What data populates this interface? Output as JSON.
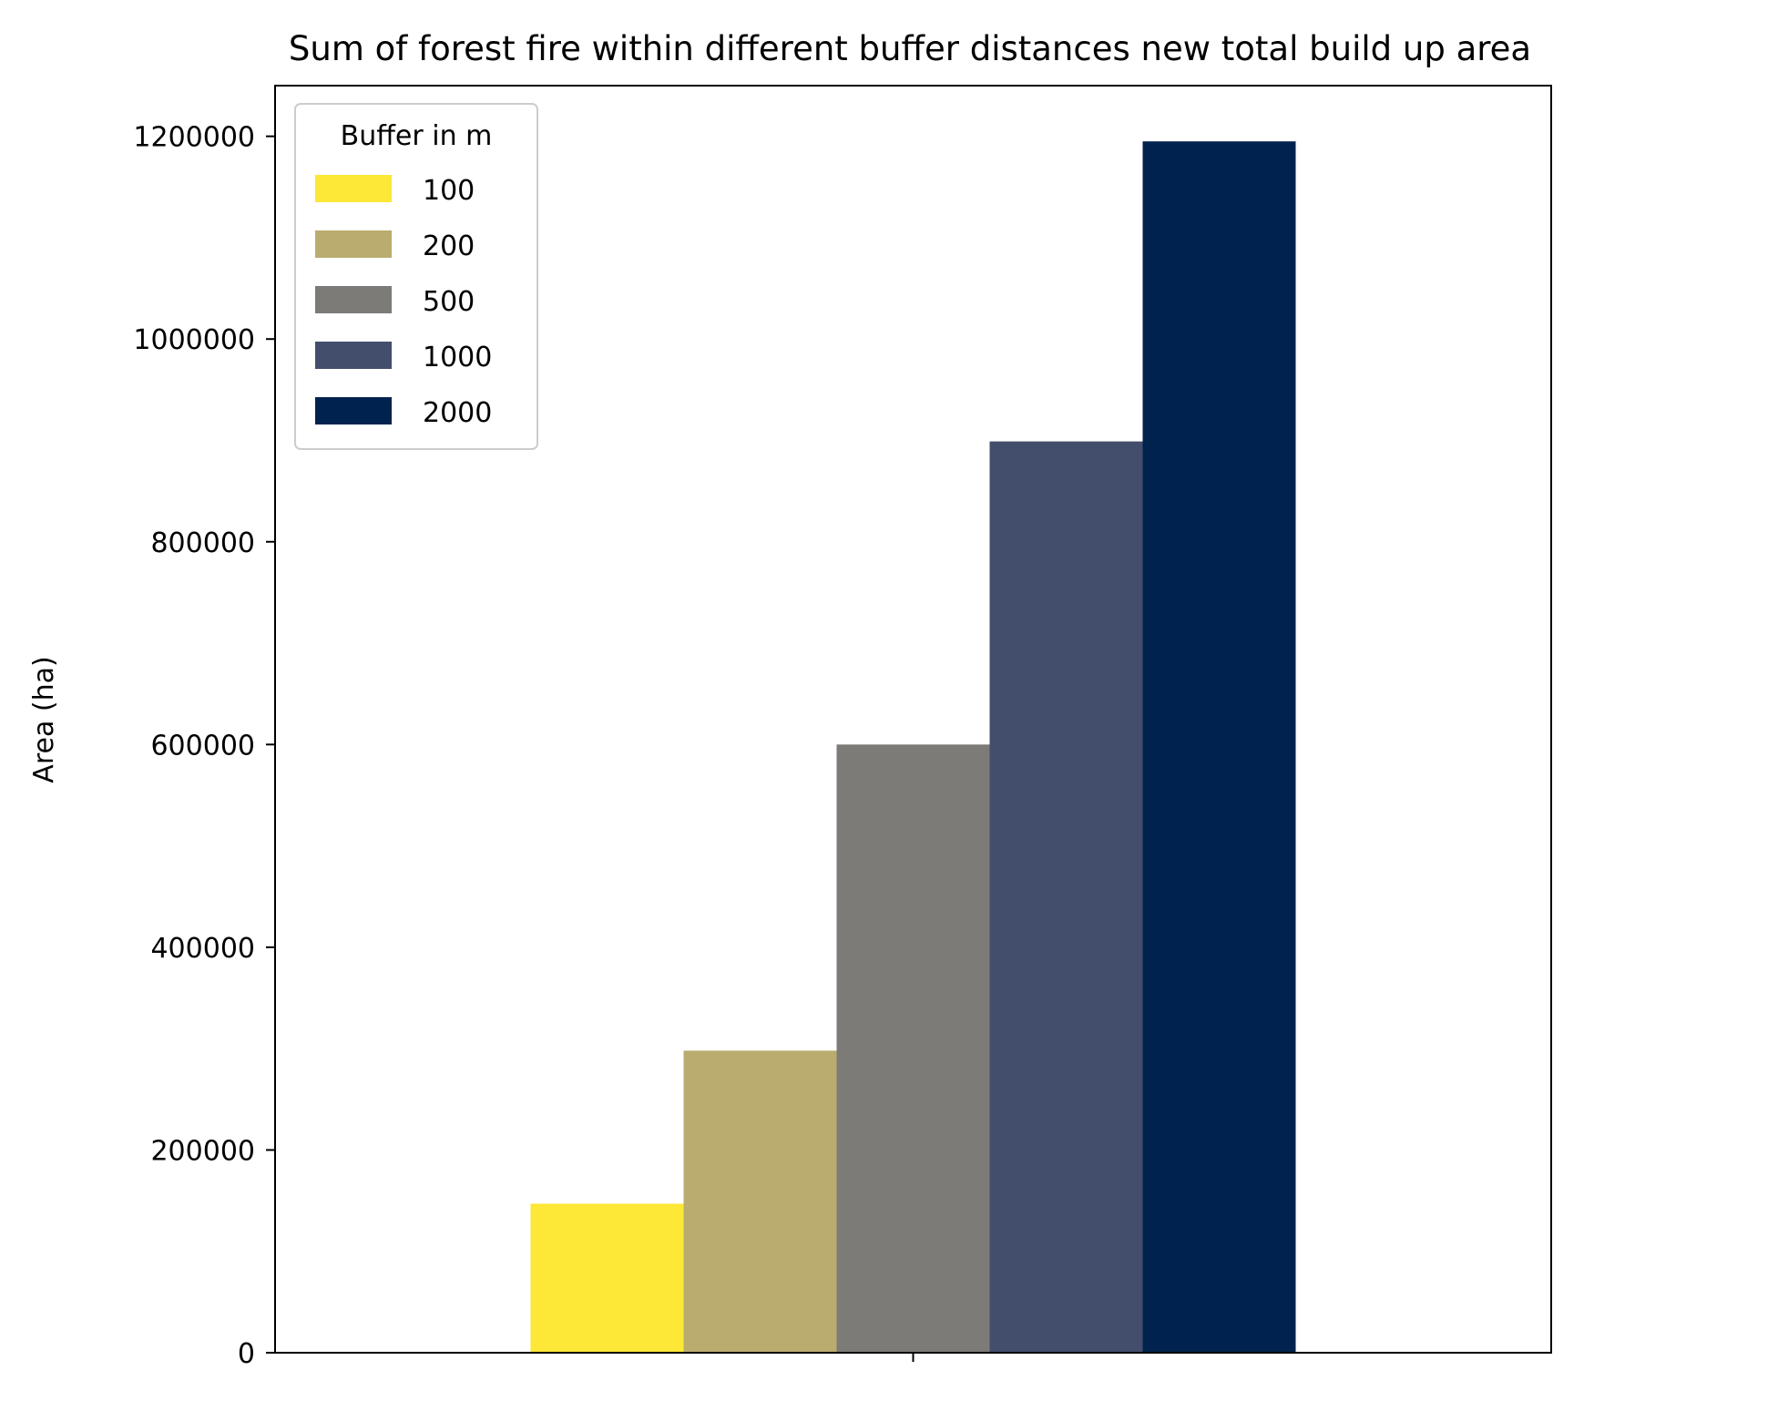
{
  "chart_data": {
    "type": "bar",
    "title": "Sum of forest fire within different buffer distances new total build up area",
    "xlabel": "",
    "ylabel": "Area (ha)",
    "ylim": [
      0,
      1250000
    ],
    "yticks": [
      0,
      200000,
      400000,
      600000,
      800000,
      1000000,
      1200000
    ],
    "ytick_labels": [
      "0",
      "200000",
      "400000",
      "600000",
      "800000",
      "1000000",
      "1200000"
    ],
    "categories": [
      ""
    ],
    "grid": false,
    "legend": {
      "title": "Buffer in m",
      "placement": "top-left"
    },
    "series": [
      {
        "name": "100",
        "values": [
          147000
        ],
        "color": "#fde737"
      },
      {
        "name": "200",
        "values": [
          298000
        ],
        "color": "#baac6e"
      },
      {
        "name": "500",
        "values": [
          600000
        ],
        "color": "#7c7b78"
      },
      {
        "name": "1000",
        "values": [
          899000
        ],
        "color": "#434e6c"
      },
      {
        "name": "2000",
        "values": [
          1195000
        ],
        "color": "#00224e"
      }
    ]
  }
}
